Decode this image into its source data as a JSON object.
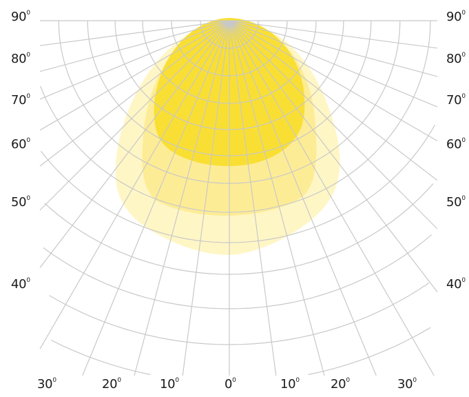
{
  "colors": {
    "grid": "#c8c8c8",
    "zone_outer": "#fff6c6",
    "zone_middle": "#fdec96",
    "zone_inner": "#f9df34",
    "text": "#1a1a1a"
  },
  "degree_mark": "0",
  "left_labels": [
    "90",
    "80",
    "70",
    "60",
    "50",
    "40"
  ],
  "right_labels": [
    "90",
    "80",
    "70",
    "60",
    "50",
    "40"
  ],
  "bottom_labels": [
    "30",
    "20",
    "10",
    "0",
    "10",
    "20",
    "30"
  ],
  "zones": [
    {
      "name": "outer",
      "level": "outer"
    },
    {
      "name": "middle",
      "level": "middle"
    },
    {
      "name": "inner",
      "level": "inner"
    }
  ]
}
